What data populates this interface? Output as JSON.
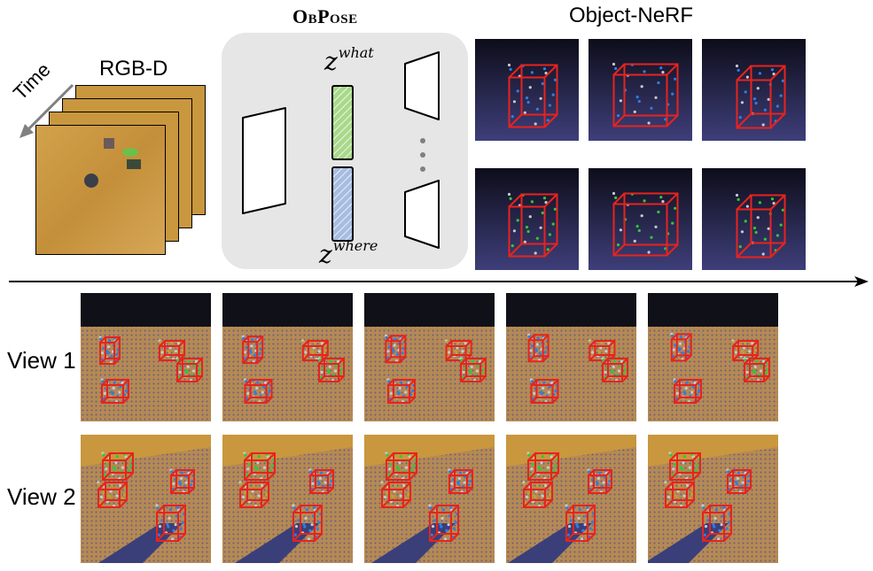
{
  "labels": {
    "rgbd": "RGB-D",
    "obpose": "ObPose",
    "object_nerf": "Object-NeRF",
    "time": "Time",
    "view1": "View 1",
    "view2": "View 2"
  },
  "latents": {
    "what": {
      "base": "z",
      "sup": "what"
    },
    "where": {
      "base": "z",
      "sup": "where"
    }
  },
  "colors": {
    "wood": "#c9973e",
    "panel": "#e6e6e6",
    "latent_what": "#a9d98b",
    "latent_where": "#a7bde0",
    "box_red": "#e8231d",
    "points_green": "#31c836",
    "points_blue": "#2f7fe0",
    "nerf_bg": "#202040"
  }
}
